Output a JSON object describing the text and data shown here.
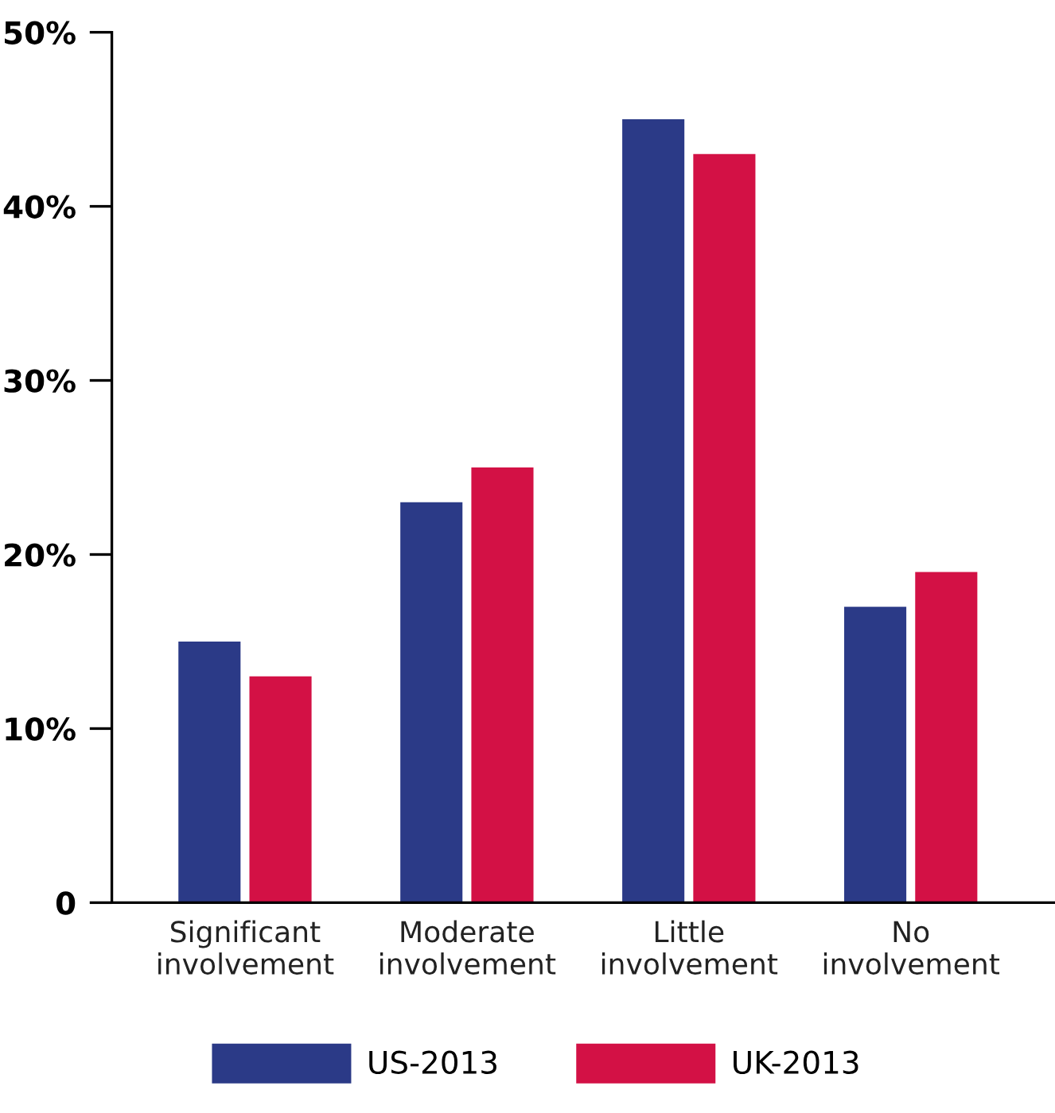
{
  "chart_data": {
    "type": "bar",
    "categories": [
      "Significant\ninvolvement",
      "Moderate\ninvolvement",
      "Little\ninvolvement",
      "No\ninvolvement"
    ],
    "series": [
      {
        "name": "US-2013",
        "color": "#2b3a87",
        "values": [
          15,
          23,
          45,
          17
        ]
      },
      {
        "name": "UK-2013",
        "color": "#d31145",
        "values": [
          13,
          25,
          43,
          19
        ]
      }
    ],
    "ylim": [
      0,
      50
    ],
    "yticks": [
      {
        "value": 0,
        "label": "0"
      },
      {
        "value": 10,
        "label": "10%"
      },
      {
        "value": 20,
        "label": "20%"
      },
      {
        "value": 30,
        "label": "30%"
      },
      {
        "value": 40,
        "label": "40%"
      },
      {
        "value": 50,
        "label": "50%"
      }
    ],
    "grid": false,
    "legend": "bottom"
  }
}
